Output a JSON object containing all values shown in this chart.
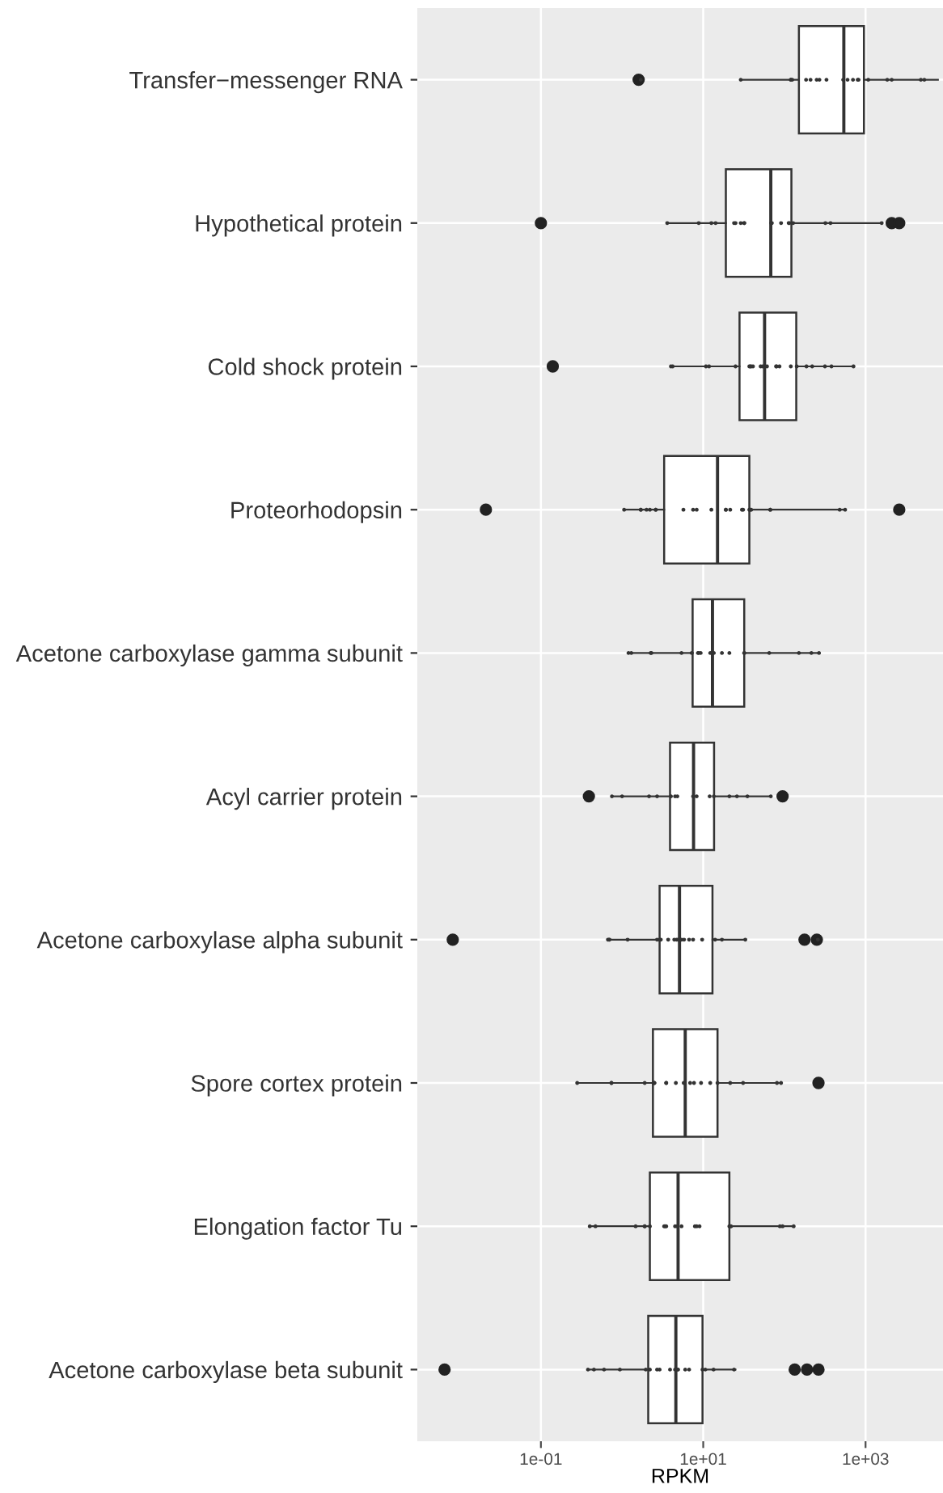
{
  "chart_data": {
    "type": "box",
    "orientation": "horizontal",
    "xlabel": "RPKM",
    "log": "x",
    "grid": true,
    "xlim": [
      0.003,
      9000
    ],
    "xticks": [
      {
        "value": 0.1,
        "label": "1e-01"
      },
      {
        "value": 10,
        "label": "1e+01"
      },
      {
        "value": 1000,
        "label": "1e+03"
      }
    ],
    "categories": [
      "Transfer−messenger RNA",
      "Hypothetical protein",
      "Cold shock protein",
      "Proteorhodopsin",
      "Acetone carboxylase gamma subunit",
      "Acyl carrier protein",
      "Acetone carboxylase alpha subunit",
      "Spore cortex protein",
      "Elongation factor Tu",
      "Acetone carboxylase beta subunit"
    ],
    "boxes": [
      {
        "low": 29,
        "q1": 151,
        "median": 540,
        "q3": 955,
        "high": 7800,
        "outliers": [
          1.6
        ]
      },
      {
        "low": 3.6,
        "q1": 19,
        "median": 68,
        "q3": 122,
        "high": 1580,
        "outliers": [
          0.1,
          2100,
          2600
        ]
      },
      {
        "low": 4.1,
        "q1": 28,
        "median": 57,
        "q3": 140,
        "high": 710,
        "outliers": [
          0.14
        ]
      },
      {
        "low": 1.06,
        "q1": 3.3,
        "median": 15,
        "q3": 37,
        "high": 560,
        "outliers": [
          0.021,
          2600
        ]
      },
      {
        "low": 1.2,
        "q1": 7.4,
        "median": 13,
        "q3": 32,
        "high": 267
      },
      {
        "low": 0.76,
        "q1": 3.9,
        "median": 7.6,
        "q3": 13.6,
        "high": 67,
        "outliers": [
          0.39,
          95
        ]
      },
      {
        "low": 0.67,
        "q1": 2.9,
        "median": 5.1,
        "q3": 13,
        "high": 33,
        "outliers": [
          0.0082,
          177,
          251
        ]
      },
      {
        "low": 0.28,
        "q1": 2.4,
        "median": 6.0,
        "q3": 15,
        "high": 91,
        "outliers": [
          263
        ]
      },
      {
        "low": 0.41,
        "q1": 2.2,
        "median": 4.9,
        "q3": 21,
        "high": 132
      },
      {
        "low": 0.39,
        "q1": 2.1,
        "median": 4.6,
        "q3": 9.8,
        "high": 25,
        "outliers": [
          0.0065,
          134,
          190,
          263
        ]
      }
    ],
    "series": [
      {
        "type": "scatter",
        "color": "#333333",
        "marker": "circle",
        "x": [
          "Transfer−messenger RNA",
          "Transfer−messenger RNA",
          "Transfer−messenger RNA",
          "Transfer−messenger RNA",
          "Transfer−messenger RNA",
          "Transfer−messenger RNA",
          "Transfer−messenger RNA",
          "Transfer−messenger RNA",
          "Transfer−messenger RNA",
          "Transfer−messenger RNA",
          "Transfer−messenger RNA",
          "Transfer−messenger RNA",
          "Transfer−messenger RNA",
          "Transfer−messenger RNA",
          "Transfer−messenger RNA",
          "Transfer−messenger RNA",
          "Transfer−messenger RNA",
          "Transfer−messenger RNA",
          "Transfer−messenger RNA",
          "Transfer−messenger RNA",
          "Hypothetical protein",
          "Hypothetical protein",
          "Hypothetical protein",
          "Hypothetical protein",
          "Hypothetical protein",
          "Hypothetical protein",
          "Hypothetical protein",
          "Hypothetical protein",
          "Hypothetical protein",
          "Hypothetical protein",
          "Hypothetical protein",
          "Hypothetical protein",
          "Hypothetical protein",
          "Hypothetical protein",
          "Hypothetical protein",
          "Hypothetical protein",
          "Hypothetical protein",
          "Hypothetical protein",
          "Cold shock protein",
          "Cold shock protein",
          "Cold shock protein",
          "Cold shock protein",
          "Cold shock protein",
          "Cold shock protein",
          "Cold shock protein",
          "Cold shock protein",
          "Cold shock protein",
          "Cold shock protein",
          "Cold shock protein",
          "Cold shock protein",
          "Cold shock protein",
          "Cold shock protein",
          "Cold shock protein",
          "Cold shock protein",
          "Cold shock protein",
          "Cold shock protein",
          "Cold shock protein",
          "Cold shock protein",
          "Cold shock protein",
          "Cold shock protein",
          "Proteorhodopsin",
          "Proteorhodopsin",
          "Proteorhodopsin",
          "Proteorhodopsin",
          "Proteorhodopsin",
          "Proteorhodopsin",
          "Proteorhodopsin",
          "Proteorhodopsin",
          "Proteorhodopsin",
          "Proteorhodopsin",
          "Proteorhodopsin",
          "Proteorhodopsin",
          "Proteorhodopsin",
          "Proteorhodopsin",
          "Proteorhodopsin",
          "Proteorhodopsin",
          "Proteorhodopsin",
          "Proteorhodopsin",
          "Proteorhodopsin",
          "Proteorhodopsin",
          "Proteorhodopsin",
          "Proteorhodopsin",
          "Proteorhodopsin",
          "Acetone carboxylase gamma subunit",
          "Acetone carboxylase gamma subunit",
          "Acetone carboxylase gamma subunit",
          "Acetone carboxylase gamma subunit",
          "Acetone carboxylase gamma subunit",
          "Acetone carboxylase gamma subunit",
          "Acetone carboxylase gamma subunit",
          "Acetone carboxylase gamma subunit",
          "Acetone carboxylase gamma subunit",
          "Acetone carboxylase gamma subunit",
          "Acetone carboxylase gamma subunit",
          "Acetone carboxylase gamma subunit",
          "Acetone carboxylase gamma subunit",
          "Acetone carboxylase gamma subunit",
          "Acetone carboxylase gamma subunit",
          "Acetone carboxylase gamma subunit",
          "Acetone carboxylase gamma subunit",
          "Acetone carboxylase gamma subunit",
          "Acetone carboxylase gamma subunit",
          "Acyl carrier protein",
          "Acyl carrier protein",
          "Acyl carrier protein",
          "Acyl carrier protein",
          "Acyl carrier protein",
          "Acyl carrier protein",
          "Acyl carrier protein",
          "Acyl carrier protein",
          "Acyl carrier protein",
          "Acyl carrier protein",
          "Acyl carrier protein",
          "Acyl carrier protein",
          "Acyl carrier protein",
          "Acyl carrier protein",
          "Acyl carrier protein",
          "Acyl carrier protein",
          "Acetone carboxylase alpha subunit",
          "Acetone carboxylase alpha subunit",
          "Acetone carboxylase alpha subunit",
          "Acetone carboxylase alpha subunit",
          "Acetone carboxylase alpha subunit",
          "Acetone carboxylase alpha subunit",
          "Acetone carboxylase alpha subunit",
          "Acetone carboxylase alpha subunit",
          "Acetone carboxylase alpha subunit",
          "Acetone carboxylase alpha subunit",
          "Acetone carboxylase alpha subunit",
          "Acetone carboxylase alpha subunit",
          "Acetone carboxylase alpha subunit",
          "Acetone carboxylase alpha subunit",
          "Acetone carboxylase alpha subunit",
          "Acetone carboxylase alpha subunit",
          "Acetone carboxylase alpha subunit",
          "Acetone carboxylase alpha subunit",
          "Acetone carboxylase alpha subunit",
          "Acetone carboxylase alpha subunit",
          "Spore cortex protein",
          "Spore cortex protein",
          "Spore cortex protein",
          "Spore cortex protein",
          "Spore cortex protein",
          "Spore cortex protein",
          "Spore cortex protein",
          "Spore cortex protein",
          "Spore cortex protein",
          "Spore cortex protein",
          "Spore cortex protein",
          "Spore cortex protein",
          "Spore cortex protein",
          "Spore cortex protein",
          "Spore cortex protein",
          "Spore cortex protein",
          "Spore cortex protein",
          "Spore cortex protein",
          "Spore cortex protein",
          "Spore cortex protein",
          "Elongation factor Tu",
          "Elongation factor Tu",
          "Elongation factor Tu",
          "Elongation factor Tu",
          "Elongation factor Tu",
          "Elongation factor Tu",
          "Elongation factor Tu",
          "Elongation factor Tu",
          "Elongation factor Tu",
          "Elongation factor Tu",
          "Elongation factor Tu",
          "Elongation factor Tu",
          "Elongation factor Tu",
          "Elongation factor Tu",
          "Elongation factor Tu",
          "Elongation factor Tu",
          "Elongation factor Tu",
          "Elongation factor Tu",
          "Elongation factor Tu",
          "Elongation factor Tu",
          "Elongation factor Tu",
          "Acetone carboxylase beta subunit",
          "Acetone carboxylase beta subunit",
          "Acetone carboxylase beta subunit",
          "Acetone carboxylase beta subunit",
          "Acetone carboxylase beta subunit",
          "Acetone carboxylase beta subunit",
          "Acetone carboxylase beta subunit",
          "Acetone carboxylase beta subunit",
          "Acetone carboxylase beta subunit",
          "Acetone carboxylase beta subunit",
          "Acetone carboxylase beta subunit",
          "Acetone carboxylase beta subunit",
          "Acetone carboxylase beta subunit",
          "Acetone carboxylase beta subunit",
          "Acetone carboxylase beta subunit",
          "Acetone carboxylase beta subunit",
          "Acetone carboxylase beta subunit",
          "Acetone carboxylase beta subunit"
        ],
        "values": [
          1.7,
          29,
          120,
          120,
          125,
          185,
          210,
          250,
          270,
          330,
          530,
          600,
          700,
          800,
          820,
          1080,
          1850,
          2100,
          4800,
          5300,
          3.6,
          8.8,
          12.6,
          14.2,
          24,
          25,
          29,
          32,
          32,
          69,
          70,
          91,
          113,
          115,
          128,
          320,
          370,
          1580,
          4.0,
          4.2,
          10.8,
          11.8,
          25,
          37,
          38,
          39,
          41,
          51,
          54,
          61,
          79,
          80,
          87,
          120,
          142,
          187,
          220,
          316,
          380,
          710,
          1.06,
          1.7,
          1.7,
          2.0,
          2.2,
          2.6,
          2.6,
          5.7,
          7.5,
          8.3,
          12.6,
          19,
          19,
          21.5,
          30,
          31,
          37,
          38,
          39,
          67,
          67,
          480,
          560,
          1.2,
          1.3,
          2.25,
          2.3,
          5.4,
          7.2,
          8.6,
          8.8,
          9.3,
          12.2,
          13.5,
          17,
          21,
          32,
          32,
          65,
          151,
          215,
          267,
          0.75,
          1.0,
          2.15,
          2.7,
          4.0,
          4.5,
          4.8,
          7.5,
          7.6,
          8.3,
          12,
          13.5,
          21,
          26,
          35,
          68,
          0.67,
          0.69,
          0.7,
          1.17,
          2.7,
          2.9,
          3.0,
          3.7,
          4.4,
          4.7,
          4.9,
          5.4,
          5.8,
          6.7,
          7.5,
          9.7,
          14,
          17,
          33,
          259,
          0.28,
          0.74,
          0.74,
          1.9,
          2.44,
          2.5,
          2.5,
          3.5,
          3.5,
          4.6,
          5.75,
          6.9,
          7.7,
          9.4,
          12.2,
          15,
          21.5,
          31,
          81,
          91,
          0.4,
          0.47,
          1.47,
          1.9,
          1.9,
          2.2,
          3.3,
          3.4,
          3.5,
          4.5,
          4.8,
          5.4,
          7.9,
          8.3,
          9.0,
          21,
          21.5,
          22,
          88,
          95,
          130,
          0.38,
          0.45,
          0.6,
          0.94,
          1.96,
          2.2,
          2.7,
          2.9,
          3.9,
          4.5,
          4.8,
          4.9,
          6.0,
          6.7,
          9.8,
          10.6,
          13.4,
          24
        ]
      }
    ]
  }
}
